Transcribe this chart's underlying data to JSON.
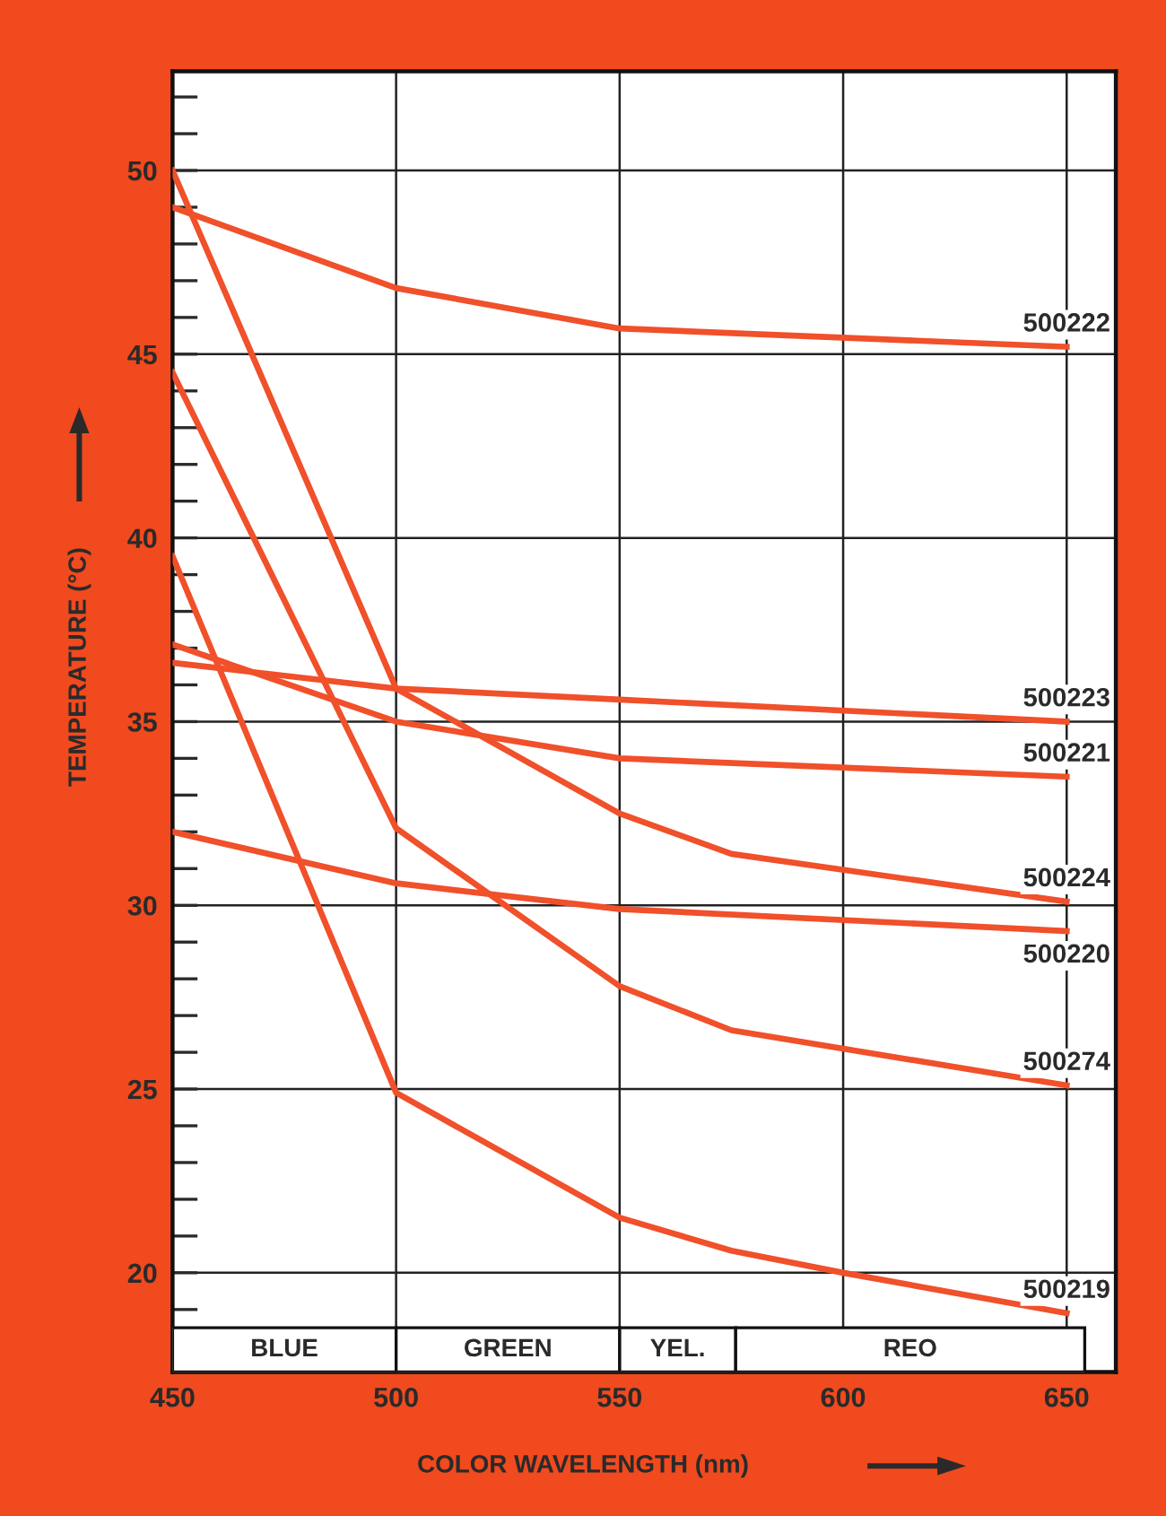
{
  "chart_data": {
    "type": "line",
    "xlabel": "COLOR WAVELENGTH (nm)",
    "ylabel": "TEMPERATURE (°C)",
    "xlim": [
      450,
      661
    ],
    "ylim": [
      17.3,
      52.7
    ],
    "xticks": [
      450,
      500,
      550,
      600,
      650
    ],
    "yticks": [
      {
        "value": 19,
        "label": null
      },
      20,
      {
        "value": 21,
        "label": null
      },
      {
        "value": 22,
        "label": null
      },
      {
        "value": 23,
        "label": null
      },
      {
        "value": 24,
        "label": null
      },
      25,
      {
        "value": 26,
        "label": null
      },
      {
        "value": 27,
        "label": null
      },
      {
        "value": 28,
        "label": null
      },
      {
        "value": 29,
        "label": null
      },
      30,
      {
        "value": 31,
        "label": null
      },
      {
        "value": 32,
        "label": null
      },
      {
        "value": 33,
        "label": null
      },
      {
        "value": 34,
        "label": null
      },
      35,
      {
        "value": 36,
        "label": null
      },
      {
        "value": 37,
        "label": null
      },
      {
        "value": 38,
        "label": null
      },
      {
        "value": 39,
        "label": null
      },
      40,
      {
        "value": 41,
        "label": null
      },
      {
        "value": 42,
        "label": null
      },
      {
        "value": 43,
        "label": null
      },
      {
        "value": 44,
        "label": null
      },
      45,
      {
        "value": 46,
        "label": null
      },
      {
        "value": 47,
        "label": null
      },
      {
        "value": 48,
        "label": null
      },
      {
        "value": 49,
        "label": null
      },
      50,
      {
        "value": 51,
        "label": null
      },
      {
        "value": 52,
        "label": null
      }
    ],
    "grid": true,
    "marker": "none",
    "line_style": "solid",
    "annotations": [
      "BLUE",
      "GREEN",
      "YEL.",
      "REO"
    ],
    "series": [
      {
        "name": "500222",
        "color": "#f0502a",
        "x": [
          450,
          500,
          550,
          650
        ],
        "values": [
          49.0,
          46.8,
          45.7,
          45.2
        ]
      },
      {
        "name": "500223",
        "color": "#f0502a",
        "x": [
          450,
          500,
          550,
          650
        ],
        "values": [
          36.6,
          35.9,
          35.6,
          35.0
        ]
      },
      {
        "name": "500221",
        "color": "#f0502a",
        "x": [
          450,
          500,
          550,
          650
        ],
        "values": [
          37.1,
          35.0,
          34.0,
          33.5
        ]
      },
      {
        "name": "500224",
        "color": "#f0502a",
        "x": [
          450,
          500,
          550,
          575,
          650
        ],
        "values": [
          50.0,
          35.9,
          32.5,
          31.4,
          30.1
        ]
      },
      {
        "name": "500220",
        "color": "#f0502a",
        "x": [
          450,
          500,
          550,
          650
        ],
        "values": [
          32.0,
          30.6,
          29.9,
          29.3
        ]
      },
      {
        "name": "500274",
        "color": "#f0502a",
        "x": [
          450,
          500,
          550,
          575,
          650
        ],
        "values": [
          44.5,
          32.1,
          27.8,
          26.6,
          25.1
        ]
      },
      {
        "name": "500219",
        "color": "#f0502a",
        "x": [
          450,
          500,
          550,
          575,
          600,
          650
        ],
        "values": [
          39.5,
          24.9,
          21.5,
          20.6,
          20.0,
          18.9
        ]
      }
    ]
  }
}
